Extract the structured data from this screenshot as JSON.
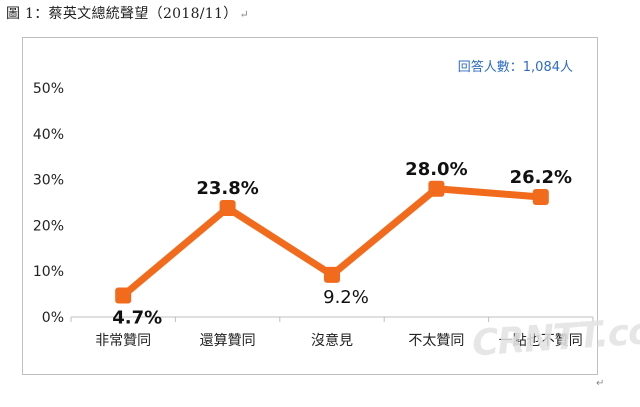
{
  "heading": "圖 1：蔡英文總統聲望（2018/11）",
  "respondents": "回答人數：1,084人",
  "paragraph_mark": "↵",
  "watermark": "CRNTT.com",
  "colors": {
    "line": "#f26b1d",
    "respondents_text": "#2f6dc4",
    "grid": "#d9d9d9"
  },
  "chart_data": {
    "type": "line",
    "categories": [
      "非常贊同",
      "還算贊同",
      "沒意見",
      "不太贊同",
      "一點也不贊同"
    ],
    "values": [
      4.7,
      23.8,
      9.2,
      28.0,
      26.2
    ],
    "data_labels": [
      "4.7%",
      "23.8%",
      "9.2%",
      "28.0%",
      "26.2%"
    ],
    "ylim": [
      0,
      50
    ],
    "yticks": [
      "0%",
      "10%",
      "20%",
      "30%",
      "40%",
      "50%"
    ],
    "grid": true,
    "legend": "none",
    "title": "",
    "xlabel": "",
    "ylabel": ""
  }
}
